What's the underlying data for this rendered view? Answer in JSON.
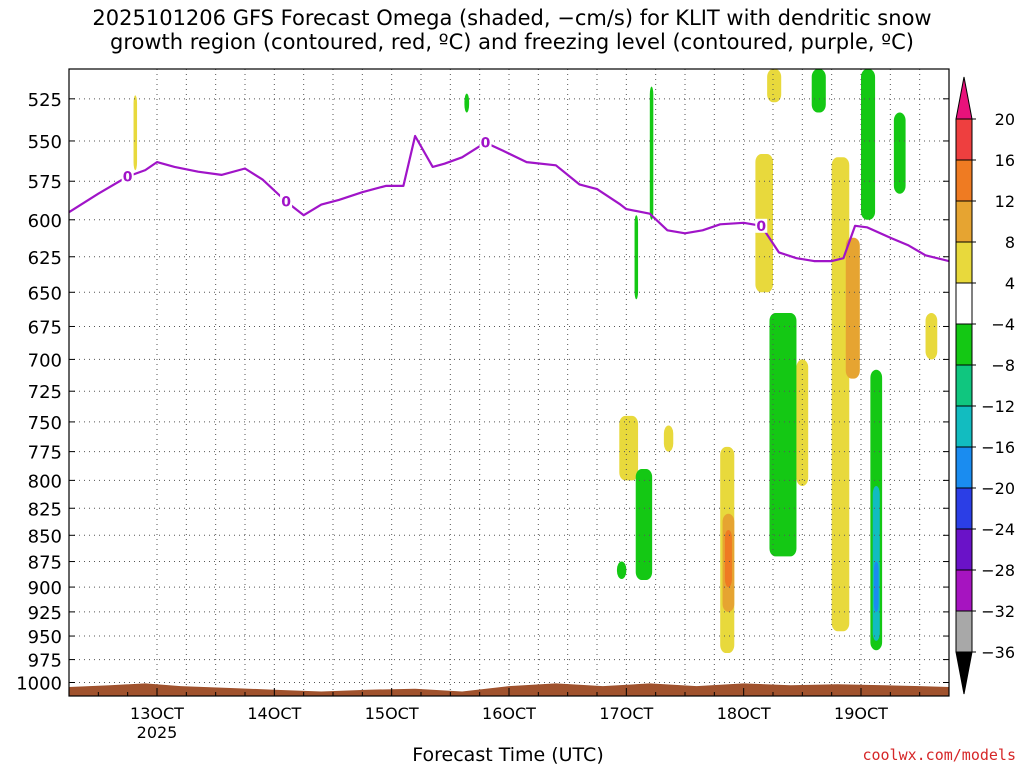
{
  "header": {
    "title_line1": "2025101206 GFS Forecast Omega (shaded, −cm/s) for KLIT with dendritic snow",
    "title_line2": "growth region (contoured, red, ºC) and freezing level (contoured, purple, ºC)"
  },
  "footer": {
    "xlabel": "Forecast Time (UTC)",
    "credit": "coolwx.com/models"
  },
  "chart_data": {
    "type": "heatmap",
    "title": "2025101206 GFS Forecast Omega (shaded, −cm/s) for KLIT with dendritic snow growth region (contoured, red, ºC) and freezing level (contoured, purple, ºC)",
    "xlabel": "Forecast Time (UTC)",
    "ylabel": "",
    "x_ticks": [
      {
        "value": 13,
        "label": "13OCT",
        "sublabel": "2025"
      },
      {
        "value": 14,
        "label": "14OCT"
      },
      {
        "value": 15,
        "label": "15OCT"
      },
      {
        "value": 16,
        "label": "16OCT"
      },
      {
        "value": 17,
        "label": "17OCT"
      },
      {
        "value": 18,
        "label": "18OCT"
      },
      {
        "value": 19,
        "label": "19OCT"
      }
    ],
    "xlim": [
      12.25,
      19.75
    ],
    "y_ticks": [
      525,
      550,
      575,
      600,
      625,
      650,
      675,
      700,
      725,
      750,
      775,
      800,
      825,
      850,
      875,
      900,
      925,
      950,
      975,
      1000
    ],
    "ylim": [
      1015,
      508
    ],
    "y_scale": "log",
    "grid": true,
    "colorbar": {
      "labels": [
        "20",
        "16",
        "12",
        "8",
        "4",
        "−4",
        "−8",
        "−12",
        "−16",
        "−20",
        "−24",
        "−28",
        "−32",
        "−36"
      ],
      "bands": [
        {
          "from": 20,
          "to": 24,
          "color": "#e8127b"
        },
        {
          "from": 16,
          "to": 20,
          "color": "#ee3f3f"
        },
        {
          "from": 12,
          "to": 16,
          "color": "#ef7b22"
        },
        {
          "from": 8,
          "to": 12,
          "color": "#e6a431"
        },
        {
          "from": 4,
          "to": 8,
          "color": "#e8d93c"
        },
        {
          "from": -4,
          "to": 4,
          "color": "#ffffff"
        },
        {
          "from": -8,
          "to": -4,
          "color": "#14c814"
        },
        {
          "from": -12,
          "to": -8,
          "color": "#10c67f"
        },
        {
          "from": -16,
          "to": -12,
          "color": "#12bcc0"
        },
        {
          "from": -20,
          "to": -16,
          "color": "#1a8cf0"
        },
        {
          "from": -24,
          "to": -20,
          "color": "#2b3ee6"
        },
        {
          "from": -28,
          "to": -24,
          "color": "#6a12c8"
        },
        {
          "from": -32,
          "to": -28,
          "color": "#a614c0"
        },
        {
          "from": -36,
          "to": -32,
          "color": "#a8a8a8"
        },
        {
          "from": -40,
          "to": -36,
          "color": "#000000"
        }
      ]
    },
    "freezing_level": {
      "label": "0",
      "color": "#a014c8",
      "x": [
        12.25,
        12.5,
        12.75,
        12.9,
        13.0,
        13.15,
        13.35,
        13.55,
        13.75,
        13.9,
        14.1,
        14.25,
        14.4,
        14.55,
        14.75,
        14.95,
        15.1,
        15.2,
        15.35,
        15.45,
        15.6,
        15.8,
        15.95,
        16.15,
        16.4,
        16.6,
        16.75,
        16.95,
        17.0,
        17.2,
        17.35,
        17.5,
        17.65,
        17.8,
        18.0,
        18.15,
        18.3,
        18.45,
        18.6,
        18.75,
        18.85,
        18.95,
        19.05,
        19.25,
        19.4,
        19.55,
        19.75
      ],
      "y": [
        595,
        583,
        572,
        568,
        563,
        566,
        569,
        571,
        567,
        574,
        588,
        597,
        590,
        587,
        582,
        578,
        578,
        547,
        566,
        564,
        560,
        551,
        556,
        563,
        565,
        577,
        580,
        590,
        593,
        596,
        607,
        609,
        607,
        603,
        602,
        604,
        622,
        626,
        628,
        628,
        626,
        604,
        605,
        612,
        617,
        624,
        628
      ]
    },
    "omega_regions": [
      {
        "x": [
          12.8,
          12.83
        ],
        "p": [
          523,
          568
        ],
        "value": 6
      },
      {
        "x": [
          15.62,
          15.66
        ],
        "p": [
          522,
          533
        ],
        "value": -6
      },
      {
        "x": [
          17.07,
          17.1
        ],
        "p": [
          597,
          655
        ],
        "value": -6
      },
      {
        "x": [
          17.2,
          17.23
        ],
        "p": [
          518,
          600
        ],
        "value": -6
      },
      {
        "x": [
          16.94,
          17.1
        ],
        "p": [
          745,
          800
        ],
        "value": 6
      },
      {
        "x": [
          17.32,
          17.4
        ],
        "p": [
          753,
          775
        ],
        "value": 6
      },
      {
        "x": [
          17.08,
          17.22
        ],
        "p": [
          790,
          893
        ],
        "value": -6
      },
      {
        "x": [
          16.92,
          17.0
        ],
        "p": [
          875,
          892
        ],
        "value": -6
      },
      {
        "x": [
          17.8,
          17.92
        ],
        "p": [
          771,
          968
        ],
        "value": 6
      },
      {
        "x": [
          17.82,
          17.92
        ],
        "p": [
          830,
          925
        ],
        "value": 10
      },
      {
        "x": [
          17.84,
          17.9
        ],
        "p": [
          845,
          900
        ],
        "value": 13
      },
      {
        "x": [
          18.1,
          18.25
        ],
        "p": [
          558,
          650
        ],
        "value": 6
      },
      {
        "x": [
          18.2,
          18.32
        ],
        "p": [
          508,
          527
        ],
        "value": 6
      },
      {
        "x": [
          18.22,
          18.45
        ],
        "p": [
          665,
          870
        ],
        "value": -6
      },
      {
        "x": [
          18.45,
          18.55
        ],
        "p": [
          700,
          805
        ],
        "value": 6
      },
      {
        "x": [
          18.58,
          18.7
        ],
        "p": [
          508,
          533
        ],
        "value": -6
      },
      {
        "x": [
          18.75,
          18.9
        ],
        "p": [
          560,
          945
        ],
        "value": 6
      },
      {
        "x": [
          18.87,
          18.99
        ],
        "p": [
          612,
          715
        ],
        "value": 10
      },
      {
        "x": [
          19.0,
          19.12
        ],
        "p": [
          508,
          600
        ],
        "value": -6
      },
      {
        "x": [
          19.08,
          19.18
        ],
        "p": [
          708,
          965
        ],
        "value": -6
      },
      {
        "x": [
          19.1,
          19.16
        ],
        "p": [
          805,
          955
        ],
        "value": -14
      },
      {
        "x": [
          19.11,
          19.15
        ],
        "p": [
          875,
          925
        ],
        "value": -18
      },
      {
        "x": [
          19.28,
          19.38
        ],
        "p": [
          533,
          583
        ],
        "value": -6
      },
      {
        "x": [
          19.55,
          19.65
        ],
        "p": [
          665,
          700
        ],
        "value": 6
      }
    ],
    "surface_pressure": {
      "color": "#a0522d",
      "x": [
        12.25,
        12.6,
        12.9,
        13.2,
        13.6,
        14.0,
        14.4,
        14.8,
        15.2,
        15.6,
        16.0,
        16.4,
        16.8,
        17.2,
        17.6,
        18.0,
        18.4,
        18.8,
        19.2,
        19.5,
        19.75
      ],
      "p": [
        1005,
        1003,
        1001,
        1004,
        1006,
        1008,
        1010,
        1008,
        1007,
        1010,
        1004,
        1001,
        1004,
        1001,
        1004,
        1001,
        1003,
        1002,
        1003,
        1004,
        1005
      ]
    }
  }
}
